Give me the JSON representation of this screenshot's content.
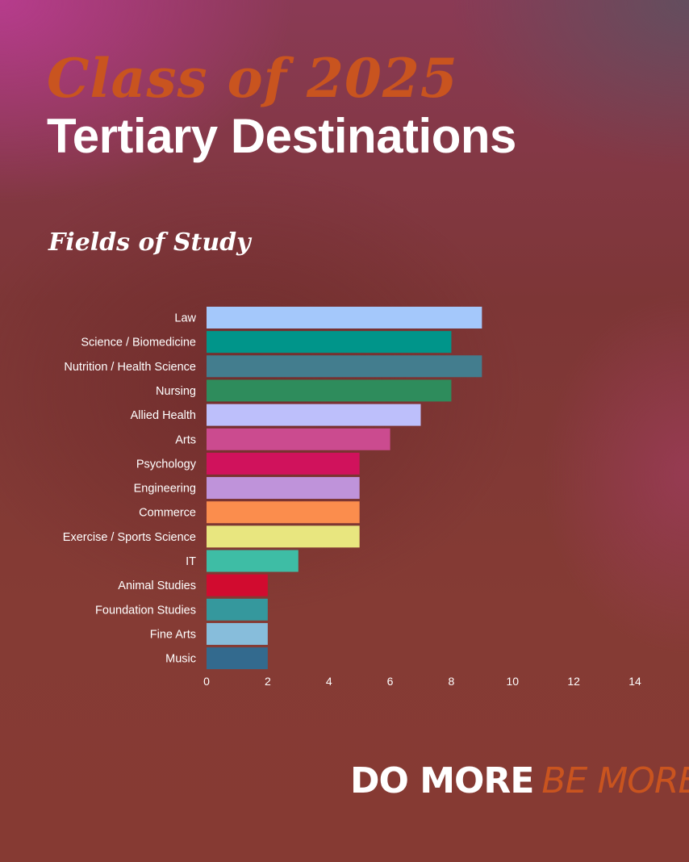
{
  "header": {
    "script_title": "Class of 2025",
    "main_title": "Tertiary Destinations"
  },
  "chart_data": {
    "type": "bar",
    "orientation": "horizontal",
    "title": "Fields of Study",
    "xlabel": "",
    "ylabel": "",
    "xlim": [
      0,
      14
    ],
    "x_ticks": [
      0,
      2,
      4,
      6,
      8,
      10,
      12,
      14
    ],
    "grid": false,
    "categories": [
      "Law",
      "Science / Biomedicine",
      "Nutrition / Health Science",
      "Nursing",
      "Allied Health",
      "Arts",
      "Psychology",
      "Engineering",
      "Commerce",
      "Exercise / Sports Science",
      "IT",
      "Animal Studies",
      "Foundation Studies",
      "Fine Arts",
      "Music"
    ],
    "values": [
      9,
      8,
      9,
      8,
      7,
      6,
      5,
      5,
      5,
      5,
      3,
      2,
      2,
      2,
      2
    ],
    "colors": [
      "#a4c8fb",
      "#00958a",
      "#437d8e",
      "#2e8c5c",
      "#bdbffb",
      "#cb4b8f",
      "#d0125c",
      "#bf93da",
      "#fb8d4d",
      "#e8e67f",
      "#3ebda5",
      "#d10b2f",
      "#35989d",
      "#87bddb",
      "#336a8e"
    ]
  },
  "footer": {
    "tagline_part1": "DO MORE",
    "tagline_part2": "BE MORE"
  }
}
